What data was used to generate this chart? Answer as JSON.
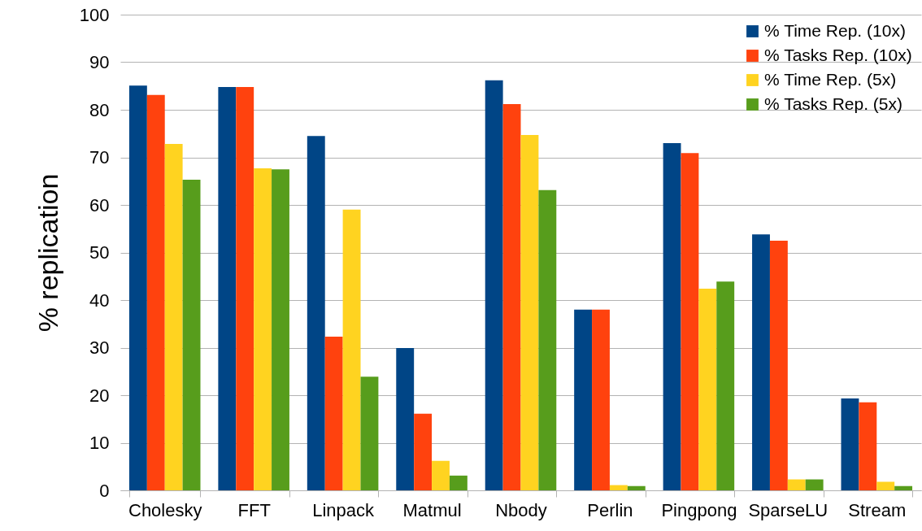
{
  "chart_data": {
    "type": "bar",
    "ylabel": "% replication",
    "categories": [
      "Cholesky",
      "FFT",
      "Linpack",
      "Matmul",
      "Nbody",
      "Perlin",
      "Pingpong",
      "SparseLU",
      "Stream"
    ],
    "series": [
      {
        "name": "% Time Rep. (10x)",
        "color": "#004586",
        "values": [
          85.1,
          84.8,
          74.5,
          29.9,
          86.2,
          38,
          73,
          53.8,
          19.3
        ]
      },
      {
        "name": "% Tasks Rep. (10x)",
        "color": "#ff420e",
        "values": [
          83.1,
          84.8,
          32.3,
          16.1,
          81.2,
          38,
          70.9,
          52.5,
          18.5
        ]
      },
      {
        "name": "% Time Rep. (5x)",
        "color": "#ffd320",
        "values": [
          72.8,
          67.7,
          59,
          6.2,
          74.7,
          1.1,
          42.4,
          2.3,
          1.8
        ]
      },
      {
        "name": "% Tasks Rep. (5x)",
        "color": "#579d1c",
        "values": [
          65.3,
          67.5,
          23.9,
          3.1,
          63.1,
          0.9,
          43.9,
          2.3,
          0.9
        ]
      }
    ],
    "ylim": [
      0,
      100
    ],
    "yticks": [
      0,
      10,
      20,
      30,
      40,
      50,
      60,
      70,
      80,
      90,
      100
    ],
    "grid": "y",
    "legend": "top right"
  }
}
